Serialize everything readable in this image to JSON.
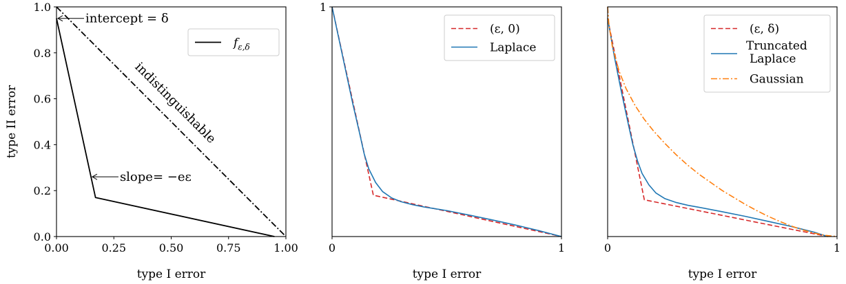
{
  "chart_data": [
    {
      "type": "line",
      "xlabel": "type I error",
      "ylabel": "type II error",
      "xlim": [
        0,
        1
      ],
      "ylim": [
        0,
        1
      ],
      "xticks": [
        "0.00",
        "0.25",
        "0.50",
        "0.75",
        "1.00"
      ],
      "yticks": [
        "0.0",
        "0.2",
        "0.4",
        "0.6",
        "0.8",
        "1.0"
      ],
      "grid": false,
      "legend": {
        "placement": "top-right",
        "entries": [
          {
            "label": "fε,δ",
            "style": "solid",
            "color": "#000000"
          }
        ]
      },
      "annotations": {
        "intercept": "intercept = δ",
        "slope": "slope= −eε",
        "diagonal": "indistinguishable"
      },
      "series": [
        {
          "name": "fε,δ",
          "color": "#000000",
          "style": "solid",
          "x": [
            0.0,
            0.17,
            0.95
          ],
          "y": [
            0.95,
            0.17,
            0.0
          ]
        },
        {
          "name": "",
          "color": "#000000",
          "style": "dashdot",
          "x": [
            0.0,
            1.0
          ],
          "y": [
            1.0,
            0.0
          ]
        }
      ]
    },
    {
      "type": "line",
      "xlabel": "type I error",
      "ylabel": "",
      "xlim": [
        0,
        1
      ],
      "ylim": [
        0,
        1
      ],
      "xticks": [
        "0",
        "1"
      ],
      "yticks": [
        "1"
      ],
      "grid": false,
      "legend": {
        "placement": "top-right",
        "entries": [
          {
            "label": "(ε, 0)",
            "style": "dashed",
            "color": "#d62728"
          },
          {
            "label": "Laplace",
            "style": "solid",
            "color": "#1f77b4"
          }
        ]
      },
      "series": [
        {
          "name": "(ε, 0)",
          "color": "#d62728",
          "style": "dashed",
          "x": [
            0.0,
            0.18,
            1.0
          ],
          "y": [
            1.0,
            0.18,
            0.0
          ]
        },
        {
          "name": "Laplace",
          "color": "#1f77b4",
          "style": "solid",
          "x": [
            0.0,
            0.03,
            0.06,
            0.09,
            0.12,
            0.14,
            0.16,
            0.19,
            0.22,
            0.26,
            0.3,
            0.35,
            0.4,
            0.45,
            0.5,
            0.6,
            0.7,
            0.8,
            0.9,
            1.0
          ],
          "y": [
            1.0,
            0.86,
            0.72,
            0.58,
            0.45,
            0.36,
            0.295,
            0.235,
            0.196,
            0.168,
            0.152,
            0.139,
            0.129,
            0.121,
            0.113,
            0.093,
            0.072,
            0.05,
            0.026,
            0.0
          ]
        }
      ]
    },
    {
      "type": "line",
      "xlabel": "type I error",
      "ylabel": "",
      "xlim": [
        0,
        1
      ],
      "ylim": [
        0,
        1
      ],
      "xticks": [
        "0",
        "1"
      ],
      "yticks": [],
      "grid": false,
      "legend": {
        "placement": "top-right",
        "entries": [
          {
            "label": "(ε, δ)",
            "style": "dashed",
            "color": "#d62728"
          },
          {
            "label": "Truncated Laplace",
            "style": "solid",
            "color": "#1f77b4"
          },
          {
            "label": "Gaussian",
            "style": "dashdot",
            "color": "#ff7f0e"
          }
        ]
      },
      "series": [
        {
          "name": "(ε, δ)",
          "color": "#d62728",
          "style": "dashed",
          "x": [
            0.0,
            0.16,
            0.96
          ],
          "y": [
            0.95,
            0.16,
            0.0
          ]
        },
        {
          "name": "Truncated Laplace",
          "color": "#1f77b4",
          "style": "solid",
          "x": [
            0.0,
            0.03,
            0.06,
            0.09,
            0.11,
            0.13,
            0.15,
            0.18,
            0.21,
            0.25,
            0.3,
            0.35,
            0.4,
            0.5,
            0.6,
            0.7,
            0.8,
            0.9,
            0.96
          ],
          "y": [
            0.95,
            0.78,
            0.63,
            0.49,
            0.4,
            0.33,
            0.275,
            0.225,
            0.19,
            0.165,
            0.148,
            0.136,
            0.127,
            0.108,
            0.088,
            0.066,
            0.044,
            0.019,
            0.0
          ]
        },
        {
          "name": "Gaussian",
          "color": "#ff7f0e",
          "style": "dashdot",
          "x": [
            0.0,
            0.005,
            0.02,
            0.05,
            0.08,
            0.12,
            0.16,
            0.2,
            0.25,
            0.3,
            0.35,
            0.4,
            0.45,
            0.5,
            0.55,
            0.6,
            0.65,
            0.7,
            0.75,
            0.8,
            0.85,
            0.9,
            0.95,
            1.0
          ],
          "y": [
            1.0,
            0.93,
            0.83,
            0.72,
            0.645,
            0.57,
            0.51,
            0.46,
            0.405,
            0.355,
            0.31,
            0.27,
            0.235,
            0.2,
            0.17,
            0.14,
            0.113,
            0.088,
            0.066,
            0.046,
            0.029,
            0.015,
            0.005,
            0.0
          ]
        }
      ]
    }
  ]
}
